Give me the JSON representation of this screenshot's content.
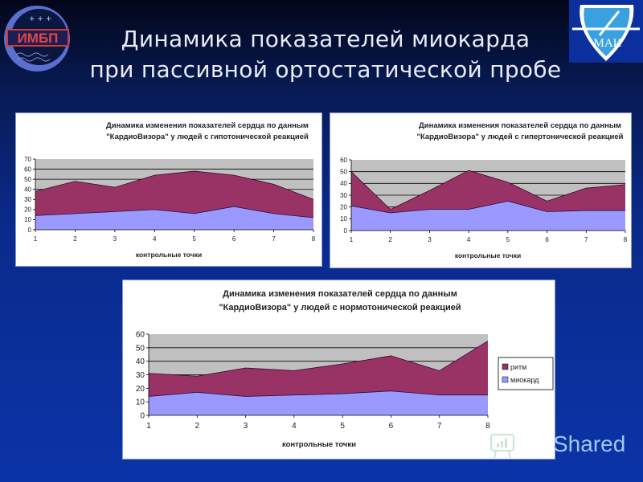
{
  "slide": {
    "title_line1": "Динамика показателей миокарда",
    "title_line2": "при пассивной ортостатической пробе",
    "logo_left_text": "ИМБП",
    "logo_right_text": "МАИ",
    "watermark": "Shared"
  },
  "colors": {
    "plot_bg": "#c0c0c0",
    "rhythm": "#993366",
    "myocard": "#9999ff",
    "gridline": "#000000"
  },
  "chart_data": [
    {
      "type": "area",
      "stacked": true,
      "title": "Динамика изменения показателей сердца по данным \"КардиоВизора\" у людей с гипотонической реакцией",
      "title_line1": "Динамика изменения показателей сердца по данным",
      "title_line2": "\"КардиоВизора\" у людей с гипотонической реакцией",
      "xlabel": "контрольные точки",
      "ylabel": "",
      "categories": [
        "1",
        "2",
        "3",
        "4",
        "5",
        "6",
        "7",
        "8"
      ],
      "ylim": [
        0,
        70
      ],
      "yticks": [
        0,
        10,
        20,
        30,
        40,
        50,
        60,
        70
      ],
      "grid": true,
      "legend_position": "none",
      "series": [
        {
          "name": "миокард",
          "values": [
            14,
            16,
            18,
            20,
            16,
            23,
            16,
            12
          ]
        },
        {
          "name": "ритм",
          "values": [
            24,
            32,
            24,
            34,
            42,
            31,
            29,
            18
          ]
        }
      ]
    },
    {
      "type": "area",
      "stacked": true,
      "title": "Динамика изменения показателей сердца по данным \"КардиоВизора\" у людей с гипертонической реакцией",
      "title_line1": "Динамика изменения показателей сердца по данным",
      "title_line2": "\"КардиоВизора\" у людей с гипертонической реакцией",
      "xlabel": "контрольные точки",
      "ylabel": "",
      "categories": [
        "1",
        "2",
        "3",
        "4",
        "5",
        "6",
        "7",
        "8"
      ],
      "ylim": [
        0,
        60
      ],
      "yticks": [
        0,
        10,
        20,
        30,
        40,
        50,
        60
      ],
      "grid": true,
      "legend_position": "none",
      "series": [
        {
          "name": "миокард",
          "values": [
            21,
            15,
            18,
            18,
            25,
            16,
            17,
            17
          ]
        },
        {
          "name": "ритм",
          "values": [
            29,
            3,
            16,
            33,
            16,
            9,
            19,
            22
          ]
        }
      ]
    },
    {
      "type": "area",
      "stacked": true,
      "title": "Динамика изменения показателей сердца по данным \"КардиоВизора\" у людей с нормотонической реакцией",
      "title_line1": "Динамика изменения показателей сердца по данным",
      "title_line2": "\"КардиоВизора\" у людей с нормотонической реакцией",
      "xlabel": "контрольные точки",
      "ylabel": "",
      "categories": [
        "1",
        "2",
        "3",
        "4",
        "5",
        "6",
        "7",
        "8"
      ],
      "ylim": [
        0,
        60
      ],
      "yticks": [
        0,
        10,
        20,
        30,
        40,
        50,
        60
      ],
      "grid": true,
      "legend_position": "right",
      "legend": [
        "ритм",
        "миокард"
      ],
      "series": [
        {
          "name": "миокард",
          "values": [
            14,
            17,
            14,
            15,
            16,
            18,
            15,
            15
          ]
        },
        {
          "name": "ритм",
          "values": [
            17,
            12,
            21,
            18,
            22,
            26,
            18,
            40
          ]
        }
      ]
    }
  ]
}
